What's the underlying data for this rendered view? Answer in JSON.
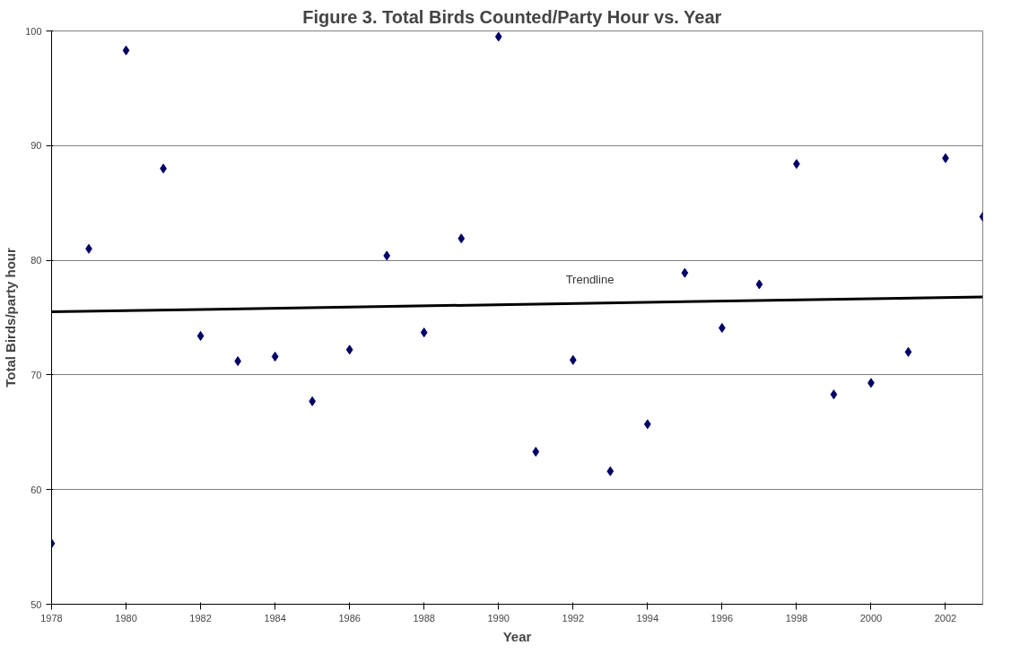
{
  "chart_data": {
    "type": "scatter",
    "title": "Figure 3.  Total Birds Counted/Party Hour  vs. Year",
    "xlabel": "Year",
    "ylabel": "Total Birds/party hour",
    "x": [
      1978,
      1979,
      1980,
      1981,
      1982,
      1983,
      1984,
      1985,
      1986,
      1987,
      1988,
      1989,
      1990,
      1991,
      1992,
      1993,
      1994,
      1995,
      1996,
      1997,
      1998,
      1999,
      2000,
      2001,
      2002,
      2003
    ],
    "series": [
      {
        "color": "#000066",
        "marker": "diamond",
        "values": [
          55.3,
          81.0,
          98.3,
          88.0,
          73.4,
          71.2,
          71.6,
          67.7,
          72.2,
          80.4,
          73.7,
          81.9,
          99.5,
          63.3,
          71.3,
          61.6,
          65.7,
          78.9,
          74.1,
          77.9,
          88.4,
          68.3,
          69.3,
          72.0,
          88.9,
          83.8
        ]
      },
      {
        "type": "line",
        "color": "#000000",
        "marker": "none",
        "x": [
          1978,
          2003
        ],
        "values": [
          75.5,
          76.8
        ]
      }
    ],
    "annotations": [
      "Trendline"
    ],
    "xlim": [
      1978,
      2003
    ],
    "xticks": [
      1978,
      1980,
      1982,
      1984,
      1986,
      1988,
      1990,
      1992,
      1994,
      1996,
      1998,
      2000,
      2002
    ],
    "ylim": [
      50,
      100
    ],
    "yticks": [
      50,
      60,
      70,
      80,
      90,
      100
    ],
    "grid": "y"
  }
}
